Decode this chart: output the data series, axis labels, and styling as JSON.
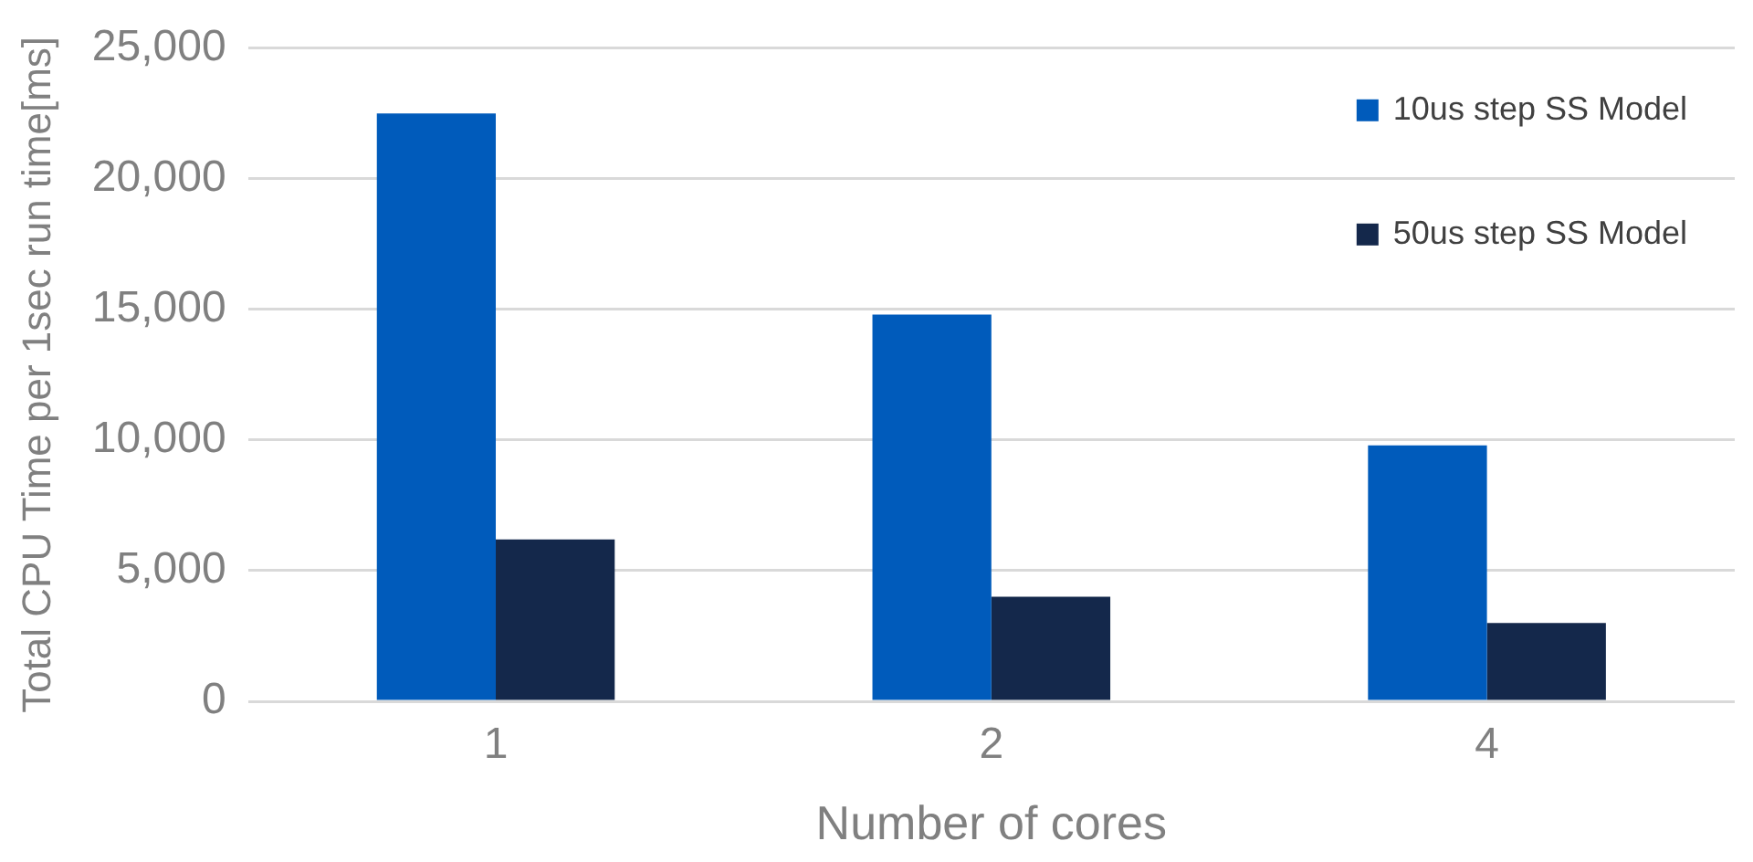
{
  "chart_data": {
    "type": "bar",
    "xlabel": "Number of cores",
    "ylabel": "Total CPU Time per 1sec run time[ms]",
    "categories": [
      "1",
      "2",
      "4"
    ],
    "series": [
      {
        "name": "10us step SS Model",
        "color": "#005bbb",
        "values": [
          22500,
          14800,
          9800
        ]
      },
      {
        "name": "50us step SS Model",
        "color": "#14284b",
        "values": [
          6200,
          4000,
          3000
        ]
      }
    ],
    "ylim": [
      0,
      25000
    ],
    "yticks": [
      {
        "value": 0,
        "label": "0"
      },
      {
        "value": 5000,
        "label": "5,000"
      },
      {
        "value": 10000,
        "label": "10,000"
      },
      {
        "value": 15000,
        "label": "15,000"
      },
      {
        "value": 20000,
        "label": "20,000"
      },
      {
        "value": 25000,
        "label": "25,000"
      }
    ],
    "grid": "y",
    "legend": "top right"
  }
}
